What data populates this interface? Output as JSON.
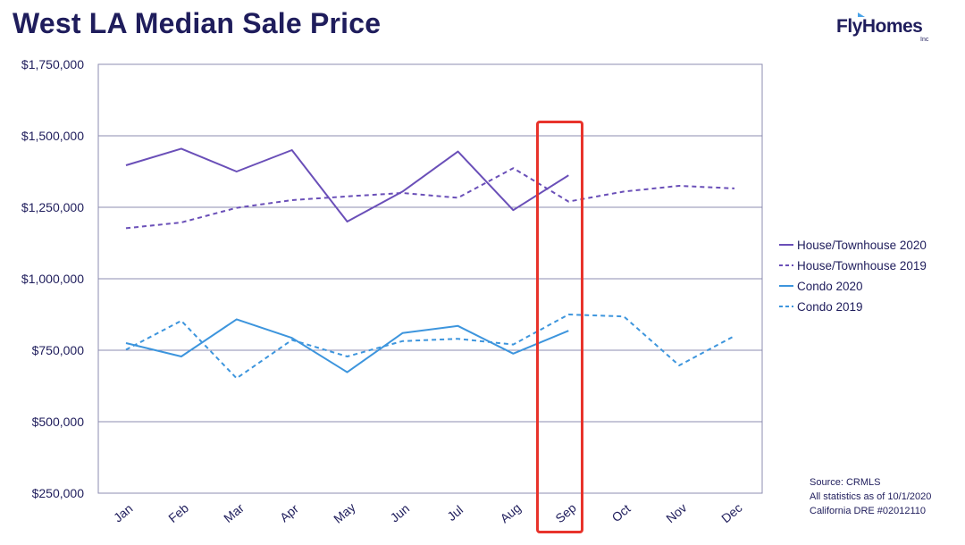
{
  "title": "West LA Median Sale Price",
  "logo": {
    "text": "FlyHomes",
    "suffix": "Inc",
    "accent": "#4aa3e8",
    "color": "#1f1d5c"
  },
  "source_lines": [
    "Source: CRMLS",
    "All statistics as of 10/1/2020",
    "California DRE #02012110"
  ],
  "highlight": {
    "category": "Sep",
    "color": "#e8332b"
  },
  "chart_data": {
    "type": "line",
    "title": "West LA Median Sale Price",
    "xlabel": "",
    "ylabel": "",
    "categories": [
      "Jan",
      "Feb",
      "Mar",
      "Apr",
      "May",
      "Jun",
      "Jul",
      "Aug",
      "Sep",
      "Oct",
      "Nov",
      "Dec"
    ],
    "ylim": [
      250000,
      1750000
    ],
    "yticks": [
      250000,
      500000,
      750000,
      1000000,
      1250000,
      1500000,
      1750000
    ],
    "ytick_labels": [
      "$250,000",
      "$500,000",
      "$750,000",
      "$1,000,000",
      "$1,250,000",
      "$1,500,000",
      "$1,750,000"
    ],
    "grid": true,
    "legend_position": "right",
    "series": [
      {
        "name": "House/Townhouse 2020",
        "color": "#6a4fb8",
        "dash": false,
        "values": [
          1397000,
          1455000,
          1375000,
          1450000,
          1200000,
          1305000,
          1445000,
          1240000,
          1362000,
          null,
          null,
          null
        ]
      },
      {
        "name": "House/Townhouse 2019",
        "color": "#6a4fb8",
        "dash": true,
        "values": [
          1177000,
          1197000,
          1248000,
          1275000,
          1288000,
          1300000,
          1283000,
          1387000,
          1270000,
          1305000,
          1325000,
          1316000
        ]
      },
      {
        "name": "Condo 2020",
        "color": "#3d95dd",
        "dash": false,
        "values": [
          775000,
          728000,
          858000,
          793000,
          673000,
          810000,
          835000,
          738000,
          818000,
          null,
          null,
          null
        ]
      },
      {
        "name": "Condo 2019",
        "color": "#3d95dd",
        "dash": true,
        "values": [
          752000,
          853000,
          652000,
          786000,
          728000,
          782000,
          790000,
          770000,
          875000,
          868000,
          697000,
          800000
        ]
      }
    ]
  }
}
